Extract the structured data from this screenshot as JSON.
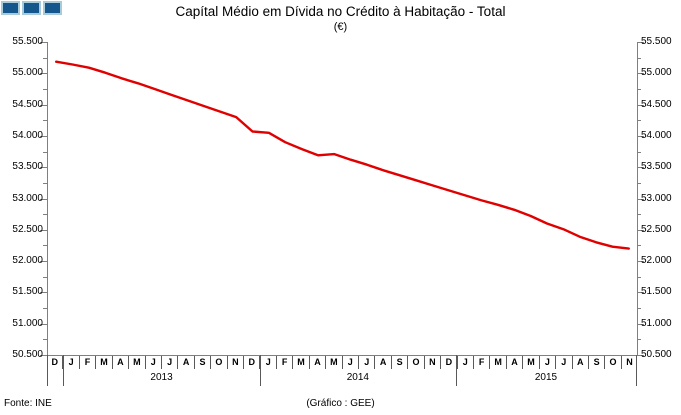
{
  "header": {
    "title": "Capítal Médio em Dívida no Crédito à Habitação - Total",
    "subtitle": "(€)"
  },
  "footer": {
    "source": "Fonte: INE",
    "credit": "(Gráfico : GEE)"
  },
  "colors": {
    "line": "#E00000",
    "axis": "#7f7f7f",
    "divider": "#595959",
    "logo_fill": "#15568C",
    "logo_border": "#A9CBD9"
  },
  "chart_data": {
    "type": "line",
    "title": "Capítal Médio em Dívida no Crédito à Habitação - Total",
    "ylabel": "(€)",
    "ylim": [
      50500,
      55500
    ],
    "y_tick_step": 500,
    "y_minor_step": 250,
    "grid": false,
    "legend": false,
    "y_tick_labels": [
      "55.500",
      "55.000",
      "54.500",
      "54.000",
      "53.500",
      "53.000",
      "52.500",
      "52.000",
      "51.500",
      "51.000",
      "50.500"
    ],
    "x_month_letters": [
      "D",
      "J",
      "F",
      "M",
      "A",
      "M",
      "J",
      "J",
      "A",
      "S",
      "O",
      "N",
      "D",
      "J",
      "F",
      "M",
      "A",
      "M",
      "J",
      "J",
      "A",
      "S",
      "O",
      "N",
      "D",
      "J",
      "F",
      "M",
      "A",
      "M",
      "J",
      "J",
      "A",
      "S",
      "O",
      "N"
    ],
    "year_groups": [
      {
        "label": "2013",
        "start": 1,
        "end": 12
      },
      {
        "label": "2014",
        "start": 13,
        "end": 24
      },
      {
        "label": "2015",
        "start": 25,
        "end": 35
      }
    ],
    "series": [
      {
        "name": "Capital médio em dívida - Total",
        "values": [
          55185,
          55140,
          55090,
          55010,
          54920,
          54840,
          54750,
          54660,
          54570,
          54480,
          54390,
          54300,
          54070,
          54050,
          53900,
          53790,
          53690,
          53710,
          53620,
          53540,
          53450,
          53370,
          53290,
          53210,
          53130,
          53050,
          52970,
          52900,
          52820,
          52720,
          52600,
          52510,
          52390,
          52300,
          52230,
          52200
        ]
      }
    ]
  }
}
